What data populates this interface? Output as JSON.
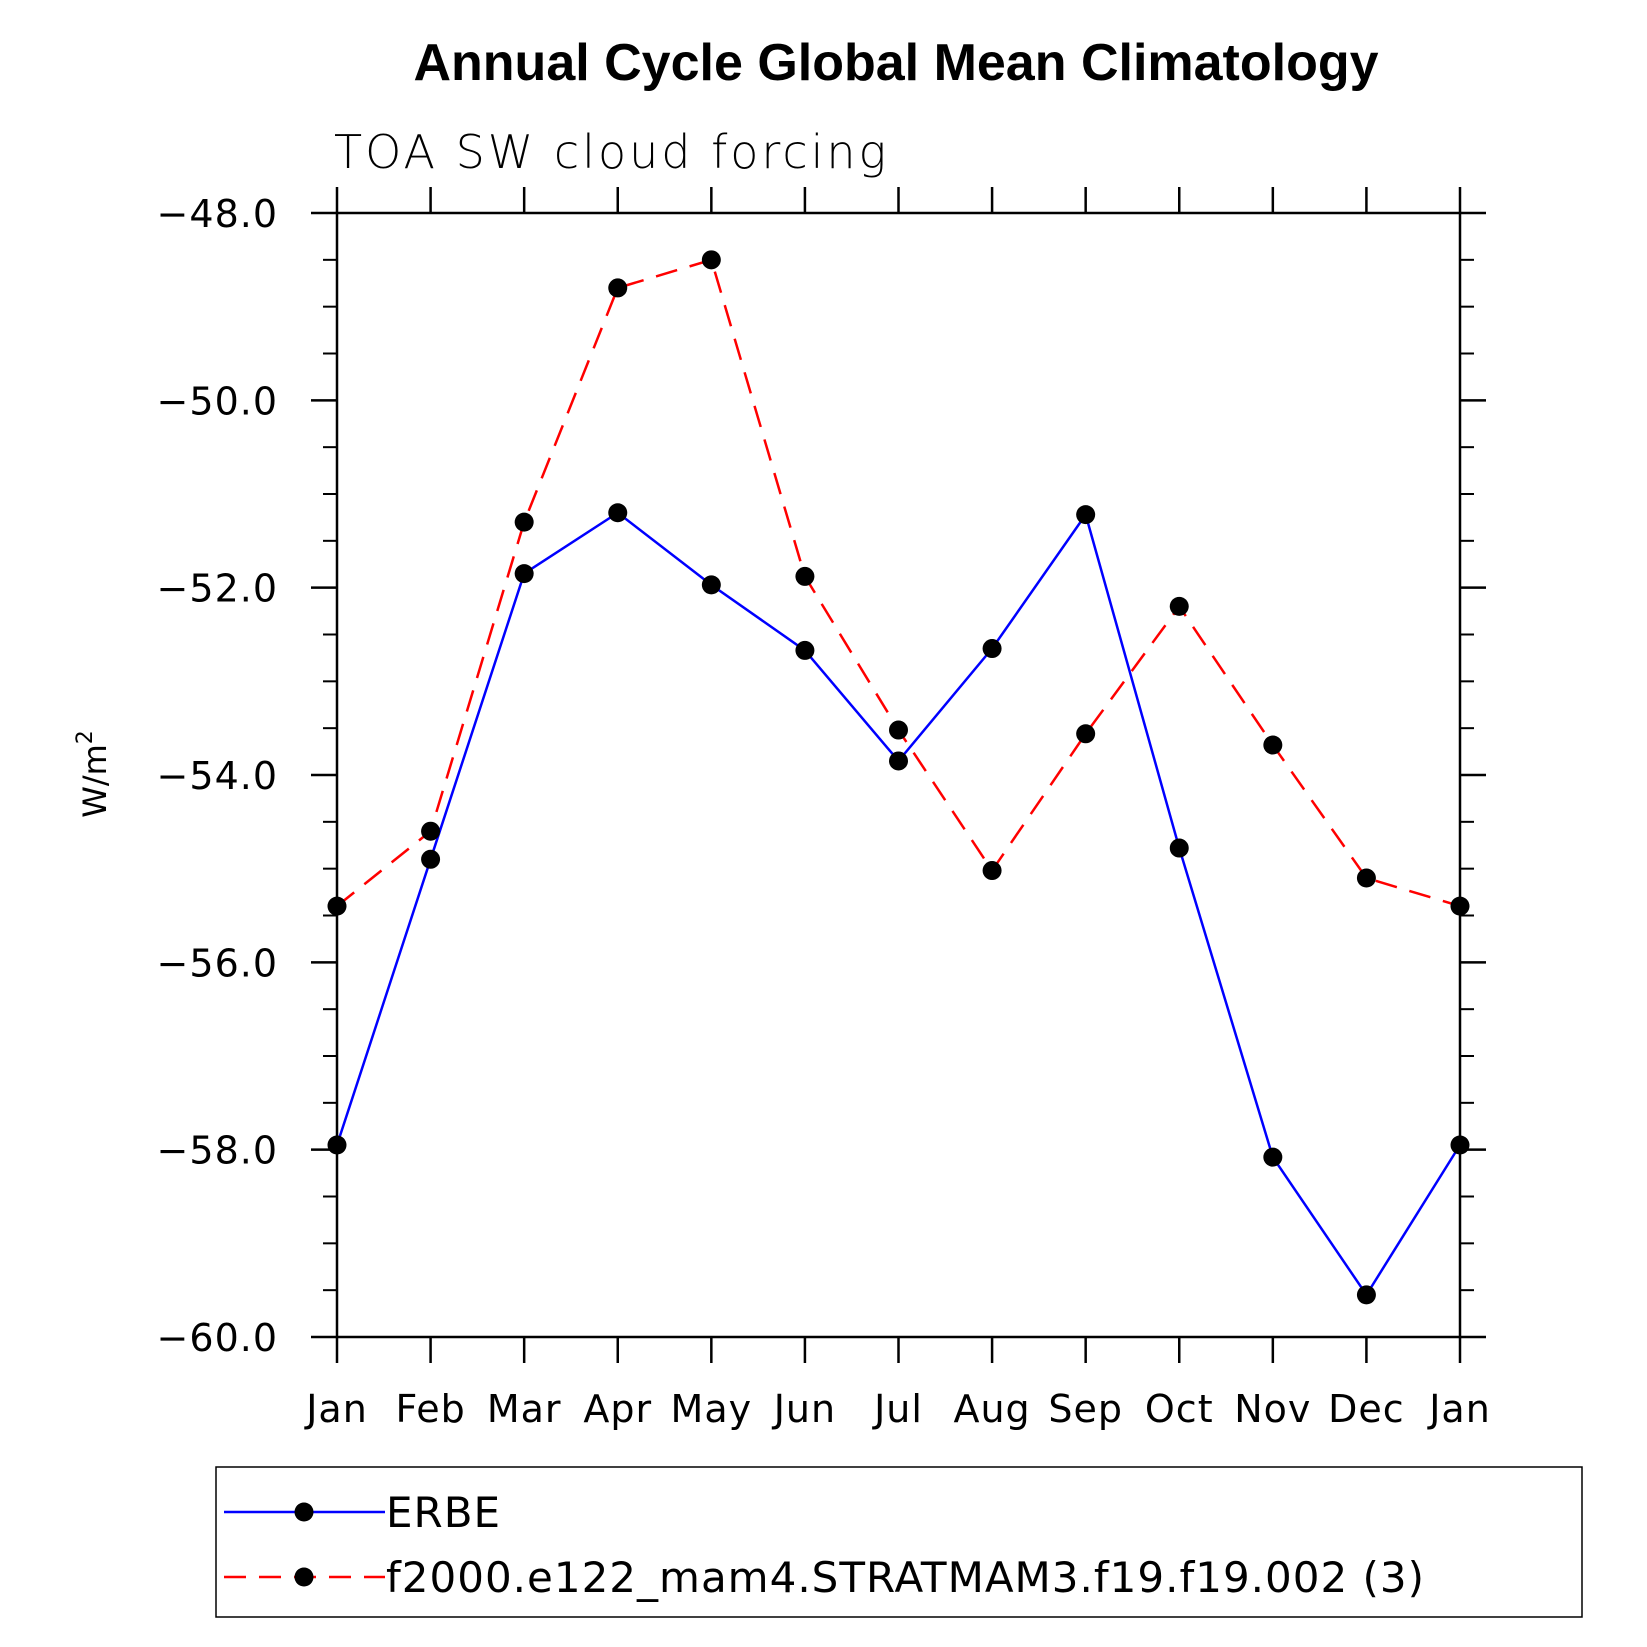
{
  "chart_data": {
    "type": "line",
    "title": "Annual Cycle Global Mean Climatology",
    "subtitle": "TOA SW cloud forcing",
    "ylabel": "W/m",
    "ylabel_superscript": "2",
    "xlabel": "",
    "categories": [
      "Jan",
      "Feb",
      "Mar",
      "Apr",
      "May",
      "Jun",
      "Jul",
      "Aug",
      "Sep",
      "Oct",
      "Nov",
      "Dec",
      "Jan"
    ],
    "ylim": [
      -60.0,
      -48.0
    ],
    "yticks": [
      "-48.0",
      "-50.0",
      "-52.0",
      "-54.0",
      "-56.0",
      "-58.0",
      "-60.0"
    ],
    "series": [
      {
        "name": "ERBE",
        "color": "#0000ff",
        "style": "solid",
        "marker": "filled-circle",
        "values": [
          -57.95,
          -54.9,
          -51.85,
          -51.2,
          -51.97,
          -52.67,
          -53.85,
          -52.65,
          -51.22,
          -54.78,
          -58.08,
          -59.55,
          -57.95
        ]
      },
      {
        "name": "f2000.e122_mam4.STRATMAM3.f19.f19.002 (3)",
        "color": "#ff0000",
        "style": "dashed",
        "marker": "filled-circle",
        "values": [
          -55.4,
          -54.6,
          -51.3,
          -48.8,
          -48.5,
          -51.88,
          -53.52,
          -55.02,
          -53.56,
          -52.2,
          -53.68,
          -55.1,
          -55.4
        ]
      }
    ],
    "legend_position": "bottom"
  }
}
